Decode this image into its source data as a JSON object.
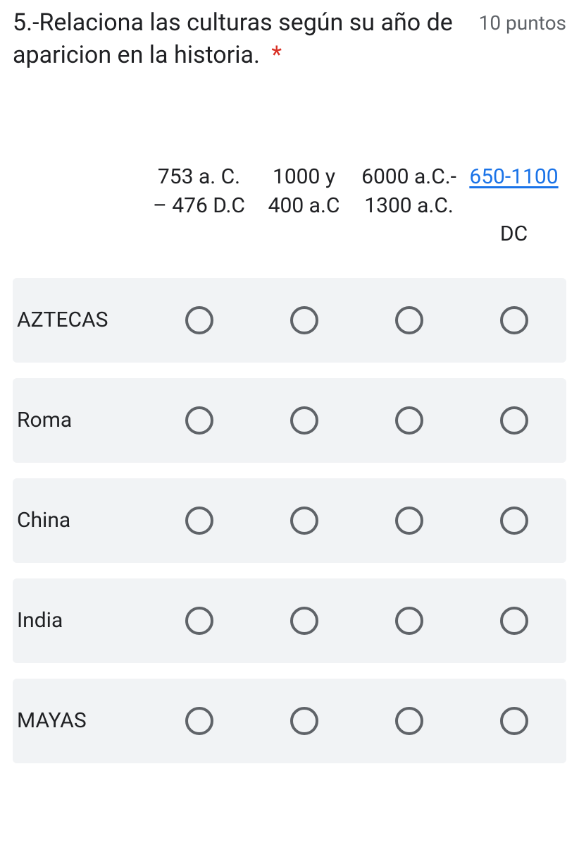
{
  "question": {
    "title": "5.-Relaciona las culturas según su año de aparicion en la historia.",
    "required_marker": "*",
    "points_label": "10 puntos"
  },
  "columns": [
    {
      "label": "753 a. C. – 476 D.C",
      "is_link": false
    },
    {
      "label": "1000 y 400 a.C",
      "is_link": false
    },
    {
      "label": "6000 a.C.- 1300 a.C.",
      "is_link": false
    },
    {
      "label_link": "650-1100",
      "label_plain": "DC",
      "is_link": true
    }
  ],
  "rows": [
    {
      "label": "AZTECAS",
      "shaded": true
    },
    {
      "label": "Roma",
      "shaded": true
    },
    {
      "label": "China",
      "shaded": true
    },
    {
      "label": "India",
      "shaded": true
    },
    {
      "label": "MAYAS",
      "shaded": true
    }
  ],
  "colors": {
    "text": "#202124",
    "muted": "#5f6368",
    "required": "#d93025",
    "link": "#1a73e8",
    "row_bg": "#f1f3f5",
    "radio_border": "#5f6368",
    "background": "#ffffff"
  }
}
